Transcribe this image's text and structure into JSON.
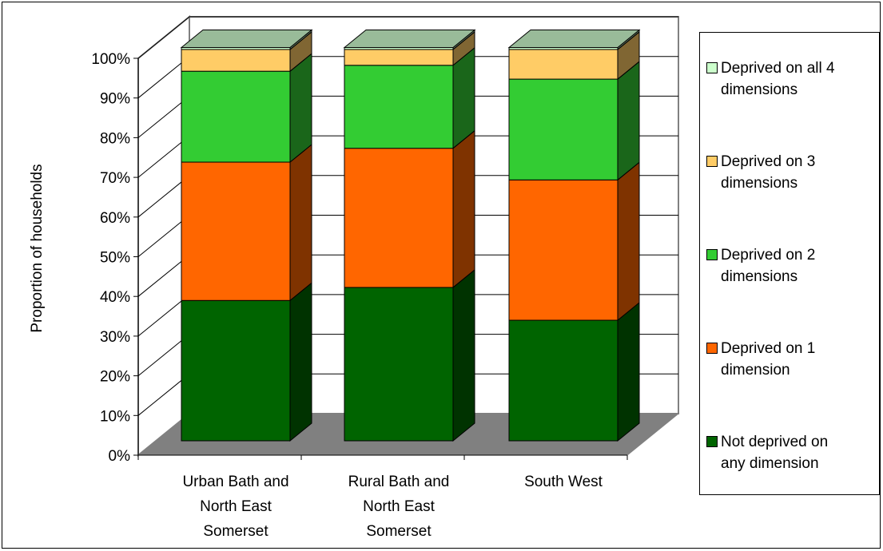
{
  "chart_data": {
    "type": "bar",
    "stacked": true,
    "three_d": true,
    "ylabel": "Proportion of households",
    "xlabel": "",
    "ylim": [
      0,
      100
    ],
    "y_ticks": [
      "0%",
      "10%",
      "20%",
      "30%",
      "40%",
      "50%",
      "60%",
      "70%",
      "80%",
      "90%",
      "100%"
    ],
    "grid": true,
    "legend_position": "right",
    "categories": [
      [
        "Urban Bath and",
        "North East",
        "Somerset"
      ],
      [
        "Rural Bath and",
        "North East",
        "Somerset"
      ],
      [
        "South West"
      ]
    ],
    "series": [
      {
        "name": "Not deprived on any dimension",
        "label_lines": [
          "Not deprived on",
          "any dimension"
        ],
        "color": "#006400",
        "side_color": "#003300",
        "values": [
          35.5,
          38.8,
          30.5
        ]
      },
      {
        "name": "Deprived on 1 dimension",
        "label_lines": [
          "Deprived on 1",
          "dimension"
        ],
        "color": "#FF6600",
        "side_color": "#7F3300",
        "values": [
          35,
          35.2,
          35.5
        ]
      },
      {
        "name": "Deprived on 2 dimensions",
        "label_lines": [
          "Deprived on 2",
          "dimensions"
        ],
        "color": "#33CC33",
        "side_color": "#1A661A",
        "values": [
          23,
          21,
          25.5
        ]
      },
      {
        "name": "Deprived on 3 dimensions",
        "label_lines": [
          "Deprived on 3",
          "dimensions"
        ],
        "color": "#FFCC66",
        "side_color": "#806633",
        "values": [
          5.5,
          4,
          7.5
        ]
      },
      {
        "name": "Deprived on all 4 dimensions",
        "label_lines": [
          "Deprived on all 4",
          "dimensions"
        ],
        "color": "#CCFFCC",
        "side_color": "#668066",
        "values": [
          0.5,
          0.5,
          0.5
        ]
      }
    ],
    "legend_order": [
      4,
      3,
      2,
      1,
      0
    ],
    "colors": {
      "top_face": "#99BB99",
      "floor": "#808080",
      "gridline": "#000000"
    }
  }
}
